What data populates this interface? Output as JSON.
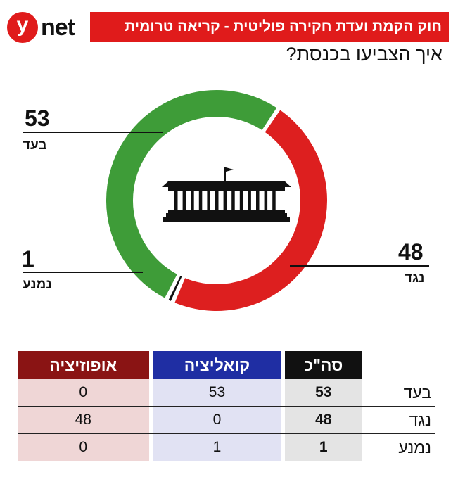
{
  "brand": {
    "logo_letter": "y",
    "logo_text": "net"
  },
  "title": "חוק הקמת ועדת חקירה פוליטית - קריאה טרומית",
  "subtitle": "איך הצביעו בכנסת?",
  "colors": {
    "for": "#3e9c38",
    "against": "#dd1f1f",
    "abstain": "#111111",
    "brand_red": "#e01b1b"
  },
  "chart_data": {
    "type": "pie",
    "donut": true,
    "slices": [
      {
        "label": "בעד",
        "value": 53,
        "color": "#3e9c38"
      },
      {
        "label": "נגד",
        "value": 48,
        "color": "#dd1f1f"
      },
      {
        "label": "נמנע",
        "value": 1,
        "color": "#111111"
      }
    ],
    "center_icon": "knesset-building-icon"
  },
  "labels": {
    "for": {
      "value": "53",
      "word": "בעד"
    },
    "abstain": {
      "value": "1",
      "word": "נמנע"
    },
    "against": {
      "value": "48",
      "word": "נגד"
    }
  },
  "table": {
    "headers": {
      "total": "סה\"כ",
      "coalition": "קואליציה",
      "opposition": "אופוזיציה"
    },
    "rows": [
      {
        "label": "בעד",
        "total": "53",
        "coalition": "53",
        "opposition": "0"
      },
      {
        "label": "נגד",
        "total": "48",
        "coalition": "0",
        "opposition": "48"
      },
      {
        "label": "נמנע",
        "total": "1",
        "coalition": "1",
        "opposition": "0"
      }
    ]
  }
}
